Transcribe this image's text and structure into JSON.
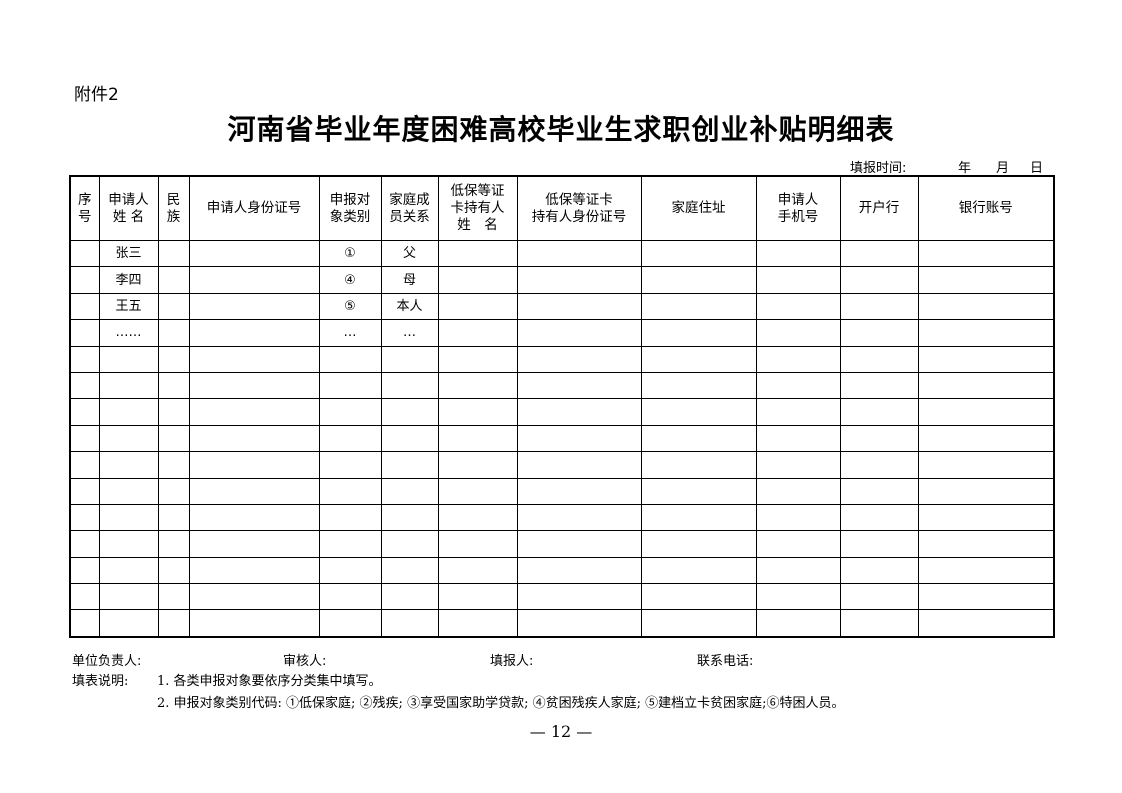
{
  "attachment": "附件2",
  "title": "河南省毕业年度困难高校毕业生求职创业补贴明细表",
  "fill_date": {
    "label": "填报时间:",
    "year": "年",
    "month": "月",
    "day": "日"
  },
  "table": {
    "headers": [
      "序\n号",
      "申请人\n姓 名",
      "民\n族",
      "申请人身份证号",
      "申报对\n象类别",
      "家庭成\n员关系",
      "低保等证\n卡持有人\n姓　名",
      "低保等证卡\n持有人身份证号",
      "家庭住址",
      "申请人\n手机号",
      "开户行",
      "银行账号"
    ],
    "rows": [
      [
        "",
        "张三",
        "",
        "",
        "①",
        "父",
        "",
        "",
        "",
        "",
        "",
        ""
      ],
      [
        "",
        "李四",
        "",
        "",
        "④",
        "母",
        "",
        "",
        "",
        "",
        "",
        ""
      ],
      [
        "",
        "王五",
        "",
        "",
        "⑤",
        "本人",
        "",
        "",
        "",
        "",
        "",
        ""
      ],
      [
        "",
        "……",
        "",
        "",
        "…",
        "…",
        "",
        "",
        "",
        "",
        "",
        ""
      ],
      [
        "",
        "",
        "",
        "",
        "",
        "",
        "",
        "",
        "",
        "",
        "",
        ""
      ],
      [
        "",
        "",
        "",
        "",
        "",
        "",
        "",
        "",
        "",
        "",
        "",
        ""
      ],
      [
        "",
        "",
        "",
        "",
        "",
        "",
        "",
        "",
        "",
        "",
        "",
        ""
      ],
      [
        "",
        "",
        "",
        "",
        "",
        "",
        "",
        "",
        "",
        "",
        "",
        ""
      ],
      [
        "",
        "",
        "",
        "",
        "",
        "",
        "",
        "",
        "",
        "",
        "",
        ""
      ],
      [
        "",
        "",
        "",
        "",
        "",
        "",
        "",
        "",
        "",
        "",
        "",
        ""
      ],
      [
        "",
        "",
        "",
        "",
        "",
        "",
        "",
        "",
        "",
        "",
        "",
        ""
      ],
      [
        "",
        "",
        "",
        "",
        "",
        "",
        "",
        "",
        "",
        "",
        "",
        ""
      ],
      [
        "",
        "",
        "",
        "",
        "",
        "",
        "",
        "",
        "",
        "",
        "",
        ""
      ],
      [
        "",
        "",
        "",
        "",
        "",
        "",
        "",
        "",
        "",
        "",
        "",
        ""
      ],
      [
        "",
        "",
        "",
        "",
        "",
        "",
        "",
        "",
        "",
        "",
        "",
        ""
      ]
    ]
  },
  "signatures": {
    "unit_head": "单位负责人:",
    "reviewer": "审核人:",
    "filler": "填报人:",
    "phone": "联系电话:"
  },
  "notes": {
    "label": "填表说明:",
    "item1": "1. 各类申报对象要依序分类集中填写。",
    "item2": "2. 申报对象类别代码: ①低保家庭; ②残疾; ③享受国家助学贷款; ④贫困残疾人家庭; ⑤建档立卡贫困家庭;⑥特困人员。"
  },
  "page_number": "— 12 —"
}
